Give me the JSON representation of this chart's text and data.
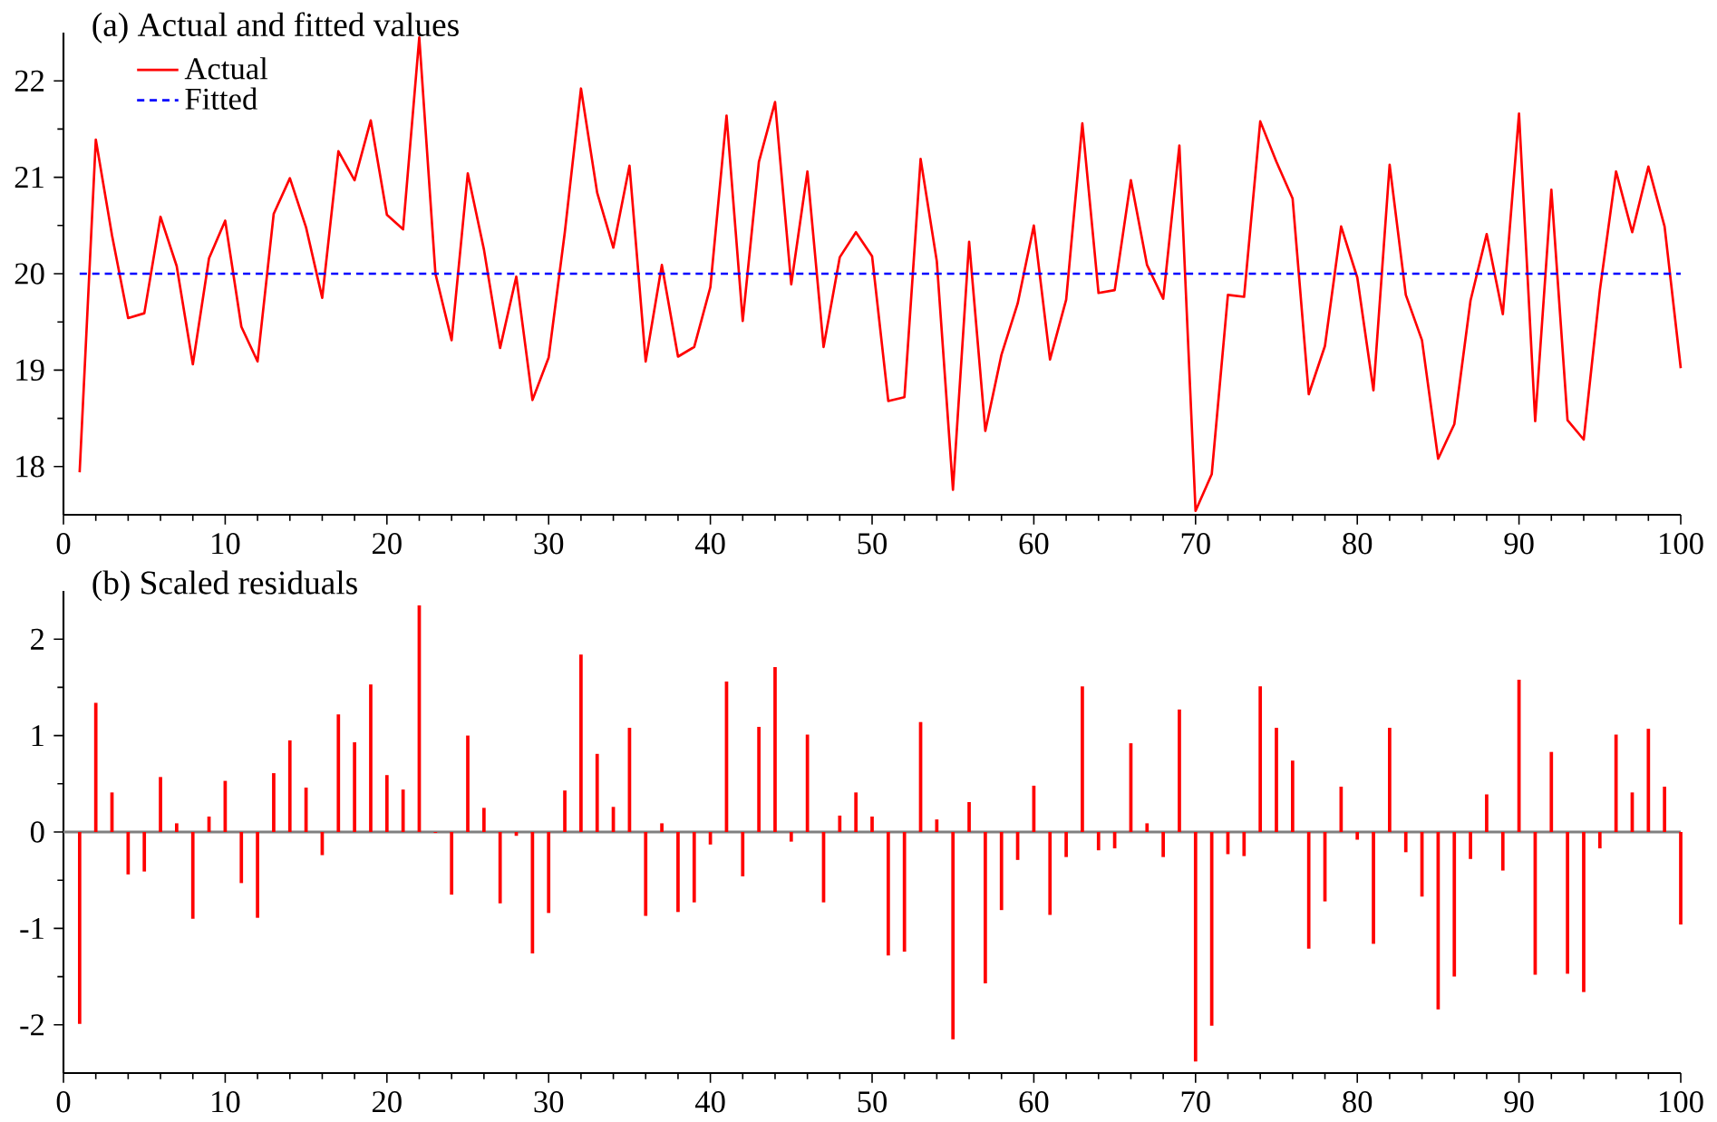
{
  "chart_data": [
    {
      "type": "line",
      "title": "(a) Actual and fitted values",
      "x": [
        1,
        2,
        3,
        4,
        5,
        6,
        7,
        8,
        9,
        10,
        11,
        12,
        13,
        14,
        15,
        16,
        17,
        18,
        19,
        20,
        21,
        22,
        23,
        24,
        25,
        26,
        27,
        28,
        29,
        30,
        31,
        32,
        33,
        34,
        35,
        36,
        37,
        38,
        39,
        40,
        41,
        42,
        43,
        44,
        45,
        46,
        47,
        48,
        49,
        50,
        51,
        52,
        53,
        54,
        55,
        56,
        57,
        58,
        59,
        60,
        61,
        62,
        63,
        64,
        65,
        66,
        67,
        68,
        69,
        70,
        71,
        72,
        73,
        74,
        75,
        76,
        77,
        78,
        79,
        80,
        81,
        82,
        83,
        84,
        85,
        86,
        87,
        88,
        89,
        90,
        91,
        92,
        93,
        94,
        95,
        96,
        97,
        98,
        99,
        100
      ],
      "series": [
        {
          "name": "Actual",
          "color": "#ff0000",
          "line_style": "solid",
          "values": [
            17.94,
            21.39,
            20.4,
            19.54,
            19.59,
            20.59,
            20.08,
            19.06,
            20.16,
            20.55,
            19.45,
            19.09,
            20.62,
            20.99,
            20.48,
            19.75,
            21.27,
            20.97,
            21.59,
            20.61,
            20.46,
            22.45,
            20.0,
            19.31,
            21.04,
            20.25,
            19.23,
            19.97,
            18.69,
            19.13,
            20.43,
            21.92,
            20.84,
            20.27,
            21.12,
            19.09,
            20.09,
            19.14,
            19.24,
            19.86,
            21.64,
            19.51,
            21.16,
            21.78,
            19.89,
            21.06,
            19.24,
            20.17,
            20.43,
            20.18,
            18.68,
            18.72,
            21.19,
            20.13,
            17.76,
            20.33,
            18.37,
            19.16,
            19.69,
            20.5,
            19.11,
            19.73,
            21.56,
            19.8,
            19.83,
            20.97,
            20.09,
            19.74,
            21.33,
            17.54,
            17.92,
            19.78,
            19.76,
            21.58,
            21.16,
            20.78,
            18.75,
            19.25,
            20.49,
            19.96,
            18.79,
            21.13,
            19.78,
            19.31,
            18.08,
            18.44,
            19.72,
            20.41,
            19.58,
            21.66,
            18.47,
            20.87,
            18.48,
            18.28,
            19.83,
            21.06,
            20.43,
            21.11,
            20.49,
            19.02
          ]
        },
        {
          "name": "Fitted",
          "color": "#0000ff",
          "line_style": "dashed",
          "x": [
            1,
            100
          ],
          "values": [
            20,
            20
          ]
        }
      ],
      "xlim": [
        0,
        100
      ],
      "xticks": [
        0,
        10,
        20,
        30,
        40,
        50,
        60,
        70,
        80,
        90,
        100
      ],
      "ylim": [
        17.5,
        22.5
      ],
      "yticks": [
        18,
        19,
        20,
        21,
        22
      ],
      "legend": "top left"
    },
    {
      "type": "bar",
      "title": "(b) Scaled residuals",
      "x": [
        1,
        2,
        3,
        4,
        5,
        6,
        7,
        8,
        9,
        10,
        11,
        12,
        13,
        14,
        15,
        16,
        17,
        18,
        19,
        20,
        21,
        22,
        23,
        24,
        25,
        26,
        27,
        28,
        29,
        30,
        31,
        32,
        33,
        34,
        35,
        36,
        37,
        38,
        39,
        40,
        41,
        42,
        43,
        44,
        45,
        46,
        47,
        48,
        49,
        50,
        51,
        52,
        53,
        54,
        55,
        56,
        57,
        58,
        59,
        60,
        61,
        62,
        63,
        64,
        65,
        66,
        67,
        68,
        69,
        70,
        71,
        72,
        73,
        74,
        75,
        76,
        77,
        78,
        79,
        80,
        81,
        82,
        83,
        84,
        85,
        86,
        87,
        88,
        89,
        90,
        91,
        92,
        93,
        94,
        95,
        96,
        97,
        98,
        99,
        100
      ],
      "series": [
        {
          "color": "#ff0000",
          "values": [
            -1.99,
            1.34,
            0.41,
            -0.44,
            -0.41,
            0.57,
            0.09,
            -0.9,
            0.16,
            0.53,
            -0.53,
            -0.89,
            0.61,
            0.95,
            0.46,
            -0.24,
            1.22,
            0.93,
            1.53,
            0.59,
            0.44,
            2.35,
            -0.01,
            -0.65,
            1.0,
            0.25,
            -0.74,
            -0.04,
            -1.26,
            -0.84,
            0.43,
            1.84,
            0.81,
            0.26,
            1.08,
            -0.87,
            0.09,
            -0.83,
            -0.73,
            -0.13,
            1.56,
            -0.46,
            1.09,
            1.71,
            -0.1,
            1.01,
            -0.73,
            0.17,
            0.41,
            0.16,
            -1.28,
            -1.24,
            1.14,
            0.13,
            -2.15,
            0.31,
            -1.57,
            -0.81,
            -0.29,
            0.48,
            -0.86,
            -0.26,
            1.51,
            -0.19,
            -0.17,
            0.92,
            0.09,
            -0.26,
            1.27,
            -2.38,
            -2.01,
            -0.23,
            -0.25,
            1.51,
            1.08,
            0.74,
            -1.21,
            -0.72,
            0.47,
            -0.08,
            -1.16,
            1.08,
            -0.21,
            -0.67,
            -1.84,
            -1.5,
            -0.28,
            0.39,
            -0.4,
            1.58,
            -1.48,
            0.83,
            -1.47,
            -1.66,
            -0.17,
            1.01,
            0.41,
            1.07,
            0.47,
            -0.96
          ]
        }
      ],
      "xlim": [
        0,
        100
      ],
      "xticks": [
        0,
        10,
        20,
        30,
        40,
        50,
        60,
        70,
        80,
        90,
        100
      ],
      "ylim": [
        -2.5,
        2.5
      ],
      "yticks": [
        -2,
        -1,
        0,
        1,
        2
      ]
    }
  ]
}
